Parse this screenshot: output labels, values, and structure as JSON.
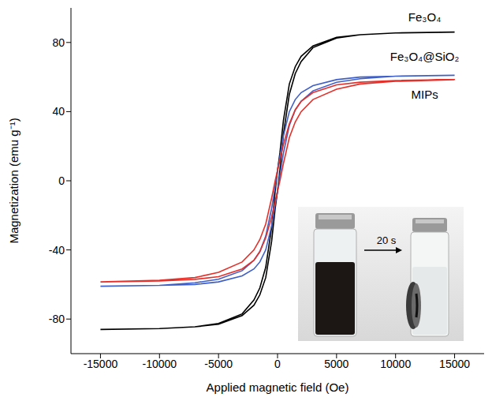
{
  "chart_data": {
    "type": "line",
    "x_label": "Applied magnetic field (Oe)",
    "y_label": "Magnetization (emu g⁻¹)",
    "x": [
      15000,
      10000,
      7000,
      5000,
      3000,
      2000,
      1500,
      1000,
      500,
      200,
      0,
      -200,
      -500,
      -1000,
      -1500,
      -2000,
      -3000,
      -5000,
      -7000,
      -10000,
      -15000,
      -10000,
      -7000,
      -5000,
      -3000,
      -2000,
      -1500,
      -1000,
      -500,
      -200,
      0,
      200,
      500,
      1000,
      1500,
      2000,
      3000,
      5000,
      7000,
      10000,
      15000
    ],
    "series": [
      {
        "name": "Fe₃O₄",
        "color": "#000000",
        "values": [
          86,
          85.5,
          84.5,
          83,
          78,
          72,
          66,
          56,
          35,
          16,
          6,
          -6,
          -27,
          -50,
          -62,
          -69,
          -77,
          -82.5,
          -84.5,
          -85.5,
          -86,
          -85.5,
          -84.5,
          -83,
          -78,
          -72,
          -66,
          -56,
          -35,
          -16,
          -6,
          6,
          27,
          50,
          62,
          69,
          77,
          82.5,
          84.5,
          85.5,
          86
        ]
      },
      {
        "name": "Fe₃O₄@SiO₂",
        "color": "#3f5fc8",
        "values": [
          61,
          60.5,
          60,
          58.5,
          55,
          51,
          47,
          40,
          26,
          14,
          6,
          -3,
          -16,
          -32,
          -41,
          -46,
          -52,
          -57,
          -59,
          -60.5,
          -61,
          -60.5,
          -60,
          -58.5,
          -55,
          -51,
          -47,
          -40,
          -26,
          -14,
          -6,
          3,
          16,
          32,
          41,
          46,
          52,
          57,
          59,
          60.5,
          61
        ]
      },
      {
        "name": "MIPs",
        "color": "#e5302a",
        "values": [
          58.5,
          58,
          57,
          55.5,
          51,
          46,
          41,
          33,
          21,
          12,
          6,
          0,
          -10,
          -25,
          -34,
          -40,
          -47,
          -53,
          -56,
          -57.5,
          -58.5,
          -58,
          -57,
          -55.5,
          -51,
          -46,
          -41,
          -33,
          -21,
          -12,
          -6,
          0,
          10,
          25,
          34,
          40,
          47,
          53,
          56,
          57.5,
          58.5
        ]
      }
    ],
    "xlim": [
      -17500,
      17500
    ],
    "xticks": [
      -15000,
      -10000,
      -5000,
      0,
      5000,
      10000,
      15000
    ],
    "ylim": [
      -100,
      100
    ],
    "yticks": [
      -80,
      -40,
      0,
      40,
      80
    ],
    "grid": false,
    "annotations": [
      "20 s"
    ]
  }
}
